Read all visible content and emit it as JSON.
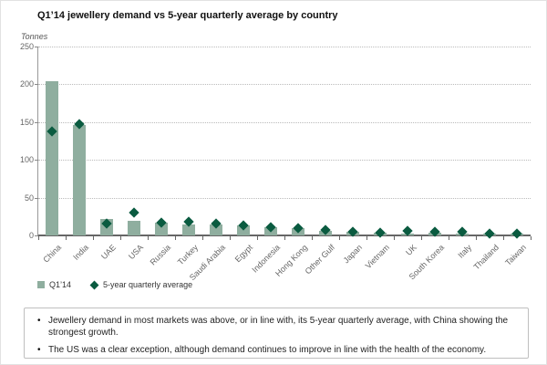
{
  "title": "Q1’14 jewellery demand vs 5-year quarterly average by country",
  "unit_label": "Tonnes",
  "chart_data": {
    "type": "bar",
    "title": "Q1’14 jewellery demand vs 5-year quarterly average by country",
    "ylabel": "Tonnes",
    "ylim": [
      0,
      250
    ],
    "yticks": [
      0,
      50,
      100,
      150,
      200,
      250
    ],
    "grid": "horizontal-dotted",
    "legend_position": "bottom-left",
    "categories": [
      "China",
      "India",
      "UAE",
      "USA",
      "Russia",
      "Turkey",
      "Saudi Arabia",
      "Egypt",
      "Indonesia",
      "Hong Kong",
      "Other Gulf",
      "Japan",
      "Vietnam",
      "UK",
      "South Korea",
      "Italy",
      "Thailand",
      "Taiwan"
    ],
    "series": [
      {
        "name": "Q1’14",
        "type": "bar",
        "color": "#8FAE9F",
        "values": [
          204,
          146,
          22,
          19,
          17,
          15,
          14,
          13,
          11,
          10,
          6,
          5,
          4,
          3,
          4,
          3,
          3,
          2
        ]
      },
      {
        "name": "5-year quarterly average",
        "type": "scatter",
        "marker": "diamond",
        "color": "#0A5B40",
        "values": [
          138,
          147,
          16,
          30,
          17,
          18,
          16,
          13,
          11,
          10,
          7,
          5,
          4,
          6,
          5,
          5,
          3,
          2
        ]
      }
    ]
  },
  "legend": {
    "items": [
      {
        "label": "Q1’14",
        "marker": "square",
        "color": "#8FAE9F"
      },
      {
        "label": "5-year quarterly average",
        "marker": "diamond",
        "color": "#0A5B40"
      }
    ]
  },
  "notes": {
    "bullets": [
      "Jewellery demand in most markets was above, or in line with, its 5-year quarterly average, with China showing the strongest growth.",
      "The US was a clear exception, although demand continues to improve in line with the health of the economy."
    ]
  },
  "colors": {
    "bar": "#8FAE9F",
    "diamond": "#0A5B40",
    "grid": "#bbbbbb",
    "axis": "#666666",
    "text_gray": "#666666"
  }
}
